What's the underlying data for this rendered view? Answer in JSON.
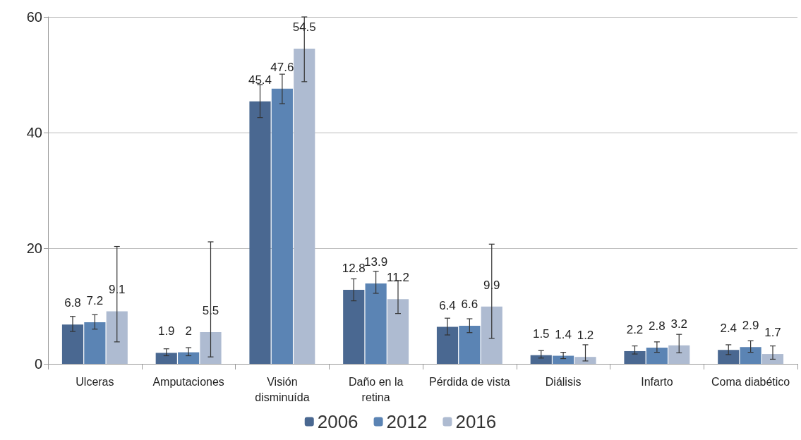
{
  "chart_data": {
    "type": "bar",
    "categories": [
      "Ulceras",
      "Amputaciones",
      "Visión\ndisminuída",
      "Daño en la\nretina",
      "Pérdida de vista",
      "Diálisis",
      "Infarto",
      "Coma diabético"
    ],
    "series": [
      {
        "name": "2006",
        "color": "#4a6891",
        "values": [
          6.8,
          1.9,
          45.4,
          12.8,
          6.4,
          1.5,
          2.2,
          2.4
        ],
        "errors": [
          [
            5.6,
            8.2
          ],
          [
            1.4,
            2.6
          ],
          [
            42.6,
            48.3
          ],
          [
            10.9,
            14.7
          ],
          [
            5.0,
            7.9
          ],
          [
            1.0,
            2.3
          ],
          [
            1.7,
            3.1
          ],
          [
            1.6,
            3.3
          ]
        ]
      },
      {
        "name": "2012",
        "color": "#5b84b4",
        "values": [
          7.2,
          2,
          47.6,
          13.9,
          6.6,
          1.4,
          2.8,
          2.9
        ],
        "errors": [
          [
            6.0,
            8.5
          ],
          [
            1.4,
            2.8
          ],
          [
            45.0,
            50.1
          ],
          [
            12.2,
            16.0
          ],
          [
            5.4,
            7.8
          ],
          [
            0.9,
            2.0
          ],
          [
            2.0,
            3.8
          ],
          [
            2.0,
            4.0
          ]
        ]
      },
      {
        "name": "2016",
        "color": "#aebbd1",
        "values": [
          9.1,
          5.5,
          54.5,
          11.2,
          9.9,
          1.2,
          3.2,
          1.7
        ],
        "errors": [
          [
            3.8,
            20.3
          ],
          [
            1.2,
            21.1
          ],
          [
            48.8,
            60
          ],
          [
            8.7,
            14.4
          ],
          [
            4.4,
            20.7
          ],
          [
            0.5,
            3.3
          ],
          [
            1.9,
            5.1
          ],
          [
            0.8,
            3.1
          ]
        ]
      }
    ],
    "ylim": [
      0,
      60
    ],
    "yticks": [
      0,
      20,
      40,
      60
    ],
    "grid": "y",
    "legend": "bottom",
    "data_labels": true
  }
}
